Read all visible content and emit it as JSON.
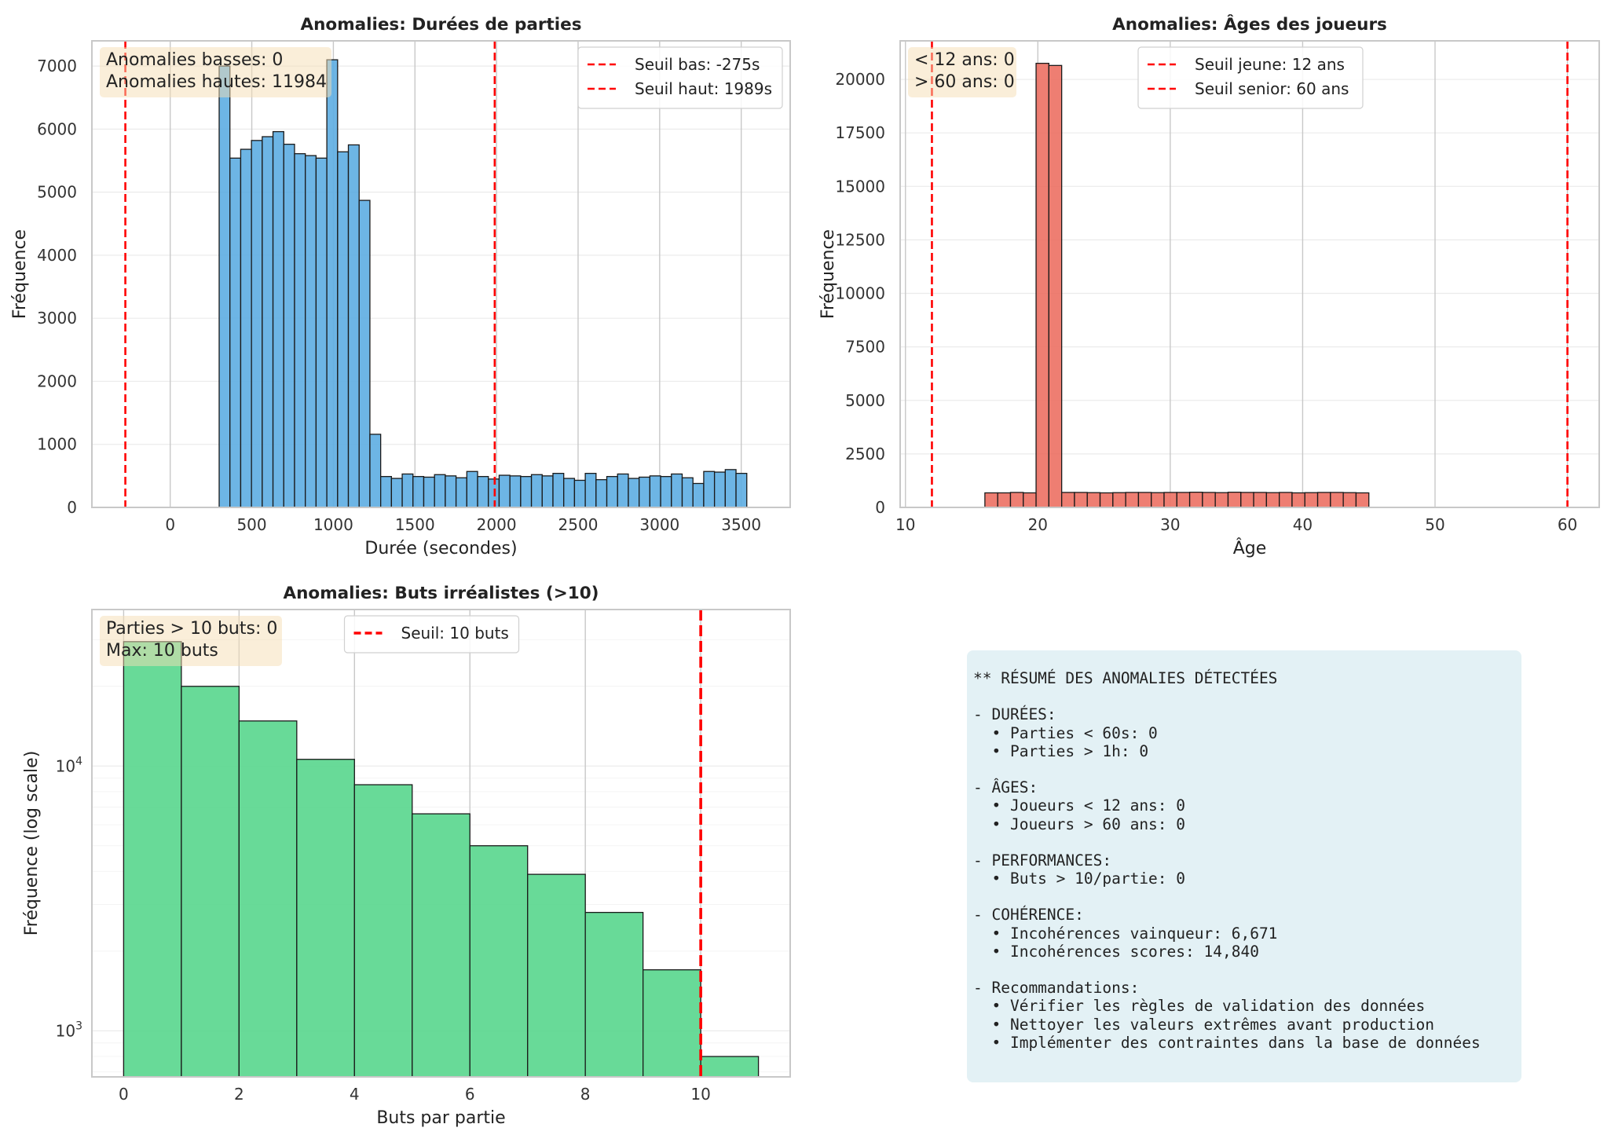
{
  "colors": {
    "duration_bars": "#5dade2",
    "age_bars": "#ec7063",
    "goals_bars": "#58d68d",
    "threshold_line": "#ff0000",
    "annotation_box": "#f5deb3",
    "summary_box": "#add8e6",
    "grid": "#e5e5e5",
    "axis_frame": "#cccccc"
  },
  "chart_data": [
    {
      "type": "bar",
      "panel": "top-left",
      "title": "Anomalies: Durées de parties",
      "xlabel": "Durée (secondes)",
      "ylabel": "Fréquence",
      "xlim": [
        -480,
        3800
      ],
      "ylim": [
        0,
        7400
      ],
      "xticks": [
        0,
        500,
        1000,
        1500,
        2000,
        2500,
        3000,
        3500
      ],
      "xtick_labels": [
        "0",
        "500",
        "1000",
        "1500",
        "2000",
        "2500",
        "3000",
        "3500"
      ],
      "yticks": [
        0,
        1000,
        2000,
        3000,
        4000,
        5000,
        6000,
        7000
      ],
      "ytick_labels": [
        "0",
        "1000",
        "2000",
        "3000",
        "4000",
        "5000",
        "6000",
        "7000"
      ],
      "grid": "both",
      "bin_start": 300,
      "bin_width": 66,
      "values": [
        7000,
        5540,
        5680,
        5820,
        5880,
        5960,
        5760,
        5610,
        5580,
        5540,
        7100,
        5640,
        5750,
        4870,
        1160,
        490,
        460,
        530,
        490,
        480,
        520,
        500,
        470,
        570,
        490,
        450,
        510,
        500,
        490,
        520,
        500,
        540,
        460,
        430,
        540,
        440,
        490,
        530,
        460,
        480,
        500,
        490,
        530,
        470,
        380,
        570,
        560,
        600,
        540
      ],
      "threshold_lines": [
        {
          "x": -275,
          "label": "Seuil bas: -275s"
        },
        {
          "x": 1989,
          "label": "Seuil haut: 1989s"
        }
      ],
      "legend_position": "upper right",
      "annotation": [
        "Anomalies basses: 0",
        "Anomalies hautes: 11984"
      ]
    },
    {
      "type": "bar",
      "panel": "top-right",
      "title": "Anomalies: Âges des joueurs",
      "xlabel": "Âge",
      "ylabel": "Fréquence",
      "xlim": [
        9.6,
        62.4
      ],
      "ylim": [
        0,
        21800
      ],
      "xticks": [
        10,
        20,
        30,
        40,
        50,
        60
      ],
      "xtick_labels": [
        "10",
        "20",
        "30",
        "40",
        "50",
        "60"
      ],
      "yticks": [
        0,
        2500,
        5000,
        7500,
        10000,
        12500,
        15000,
        17500,
        20000
      ],
      "ytick_labels": [
        "0",
        "2500",
        "5000",
        "7500",
        "10000",
        "12500",
        "15000",
        "17500",
        "20000"
      ],
      "grid": "both",
      "bin_start": 16,
      "bin_width": 0.9667,
      "values": [
        680,
        680,
        700,
        680,
        20750,
        20650,
        700,
        700,
        690,
        680,
        690,
        700,
        700,
        690,
        700,
        700,
        710,
        700,
        690,
        710,
        700,
        700,
        690,
        700,
        680,
        690,
        700,
        700,
        690,
        680
      ],
      "threshold_lines": [
        {
          "x": 12,
          "label": "Seuil jeune: 12 ans"
        },
        {
          "x": 60,
          "label": "Seuil senior: 60 ans"
        }
      ],
      "legend_position": "upper center",
      "annotation": [
        "< 12 ans: 0",
        "> 60 ans: 0"
      ]
    },
    {
      "type": "bar",
      "panel": "bottom-left",
      "scale": "log",
      "title": "Anomalies: Buts irréalistes (>10)",
      "xlabel": "Buts par partie",
      "ylabel": "Fréquence (log scale)",
      "xlim": [
        -0.55,
        11.55
      ],
      "ylim": [
        670,
        39000
      ],
      "xticks": [
        0,
        2,
        4,
        6,
        8,
        10
      ],
      "xtick_labels": [
        "0",
        "2",
        "4",
        "6",
        "8",
        "10"
      ],
      "yticks": [
        1000,
        10000
      ],
      "ytick_labels": [
        "10^3",
        "10^4"
      ],
      "grid": "both",
      "bin_start": 0,
      "bin_width": 1,
      "values": [
        29500,
        20000,
        14800,
        10600,
        8500,
        6600,
        5000,
        3900,
        2800,
        1700,
        800
      ],
      "threshold_lines": [
        {
          "x": 10,
          "label": "Seuil: 10 buts"
        }
      ],
      "legend_position": "upper center",
      "annotation": [
        "Parties > 10 buts: 0",
        "Max: 10 buts"
      ]
    }
  ],
  "summary": {
    "lines": [
      "** RÉSUMÉ DES ANOMALIES DÉTECTÉES",
      "",
      "- DURÉES:",
      "  • Parties < 60s: 0",
      "  • Parties > 1h: 0",
      "",
      "- ÂGES:",
      "  • Joueurs < 12 ans: 0",
      "  • Joueurs > 60 ans: 0",
      "",
      "- PERFORMANCES:",
      "  • Buts > 10/partie: 0",
      "",
      "- COHÉRENCE:",
      "  • Incohérences vainqueur: 6,671",
      "  • Incohérences scores: 14,840",
      "",
      "- Recommandations:",
      "  • Vérifier les règles de validation des données",
      "  • Nettoyer les valeurs extrêmes avant production",
      "  • Implémenter des contraintes dans la base de données"
    ]
  }
}
